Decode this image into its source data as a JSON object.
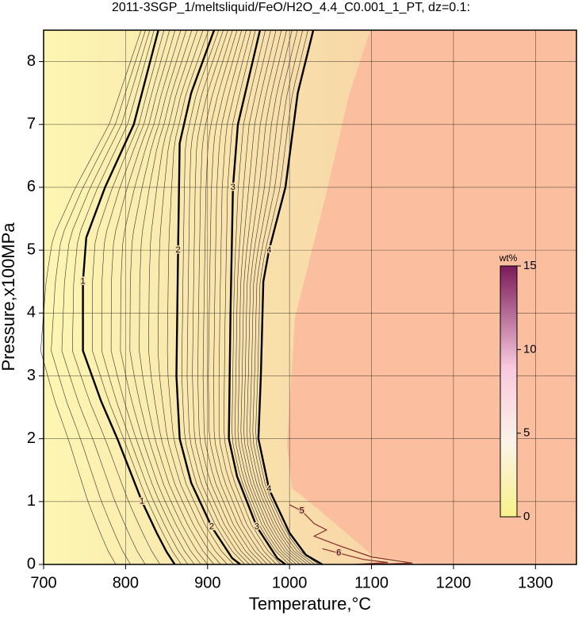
{
  "chart_data": {
    "type": "contour",
    "title": "2011-3SGP_1/meltsliquid/FeO/H2O_4.4_C0.001_1_PT, dz=0.1:",
    "xlabel": "Temperature,°C",
    "ylabel": "Pressure,x100MPa",
    "xlim": [
      700,
      1350
    ],
    "ylim": [
      0,
      8.5
    ],
    "xticks": [
      700,
      800,
      900,
      1000,
      1100,
      1200,
      1300
    ],
    "yticks": [
      0,
      1,
      2,
      3,
      4,
      5,
      6,
      7,
      8
    ],
    "grid": true,
    "contours": [
      {
        "level": 1,
        "x": [
          840,
          810,
          775,
          752,
          748,
          748,
          770,
          790,
          805,
          820,
          838,
          850,
          860
        ],
        "y": [
          8.5,
          7,
          6,
          5.2,
          4.5,
          3.4,
          2.6,
          2.0,
          1.5,
          1.0,
          0.5,
          0.2,
          0
        ]
      },
      {
        "level": 2,
        "x": [
          908,
          880,
          866,
          864,
          862,
          866,
          880,
          905,
          930,
          940
        ],
        "y": [
          8.5,
          7.5,
          6.7,
          5,
          3,
          2,
          1.3,
          0.6,
          0.1,
          0
        ]
      },
      {
        "level": 3,
        "x": [
          964,
          955,
          937,
          931,
          928,
          926,
          936,
          960,
          985,
          995
        ],
        "y": [
          8.5,
          8,
          7,
          6,
          4,
          2,
          1.4,
          0.6,
          0.1,
          0
        ]
      },
      {
        "level": 4,
        "x": [
          1029,
          1010,
          995,
          975,
          968,
          965,
          962,
          975,
          1000,
          1020,
          1040
        ],
        "y": [
          8.5,
          7.5,
          6,
          5,
          4.5,
          3,
          2,
          1.2,
          0.5,
          0.15,
          0
        ]
      },
      {
        "level": 5,
        "x": [
          1000,
          1015,
          1030,
          1045,
          1030,
          1060,
          1100,
          1150,
          1100
        ],
        "y": [
          0.95,
          0.85,
          0.65,
          0.55,
          0.45,
          0.3,
          0.12,
          0.02,
          0
        ]
      },
      {
        "level": 6,
        "x": [
          1040,
          1060,
          1090,
          1120,
          1080
        ],
        "y": [
          0.25,
          0.18,
          0.08,
          0.03,
          0
        ]
      }
    ],
    "colorbar": {
      "label": "wt%",
      "lim": [
        0,
        15
      ],
      "ticks": [
        0,
        5,
        10,
        15
      ]
    }
  }
}
